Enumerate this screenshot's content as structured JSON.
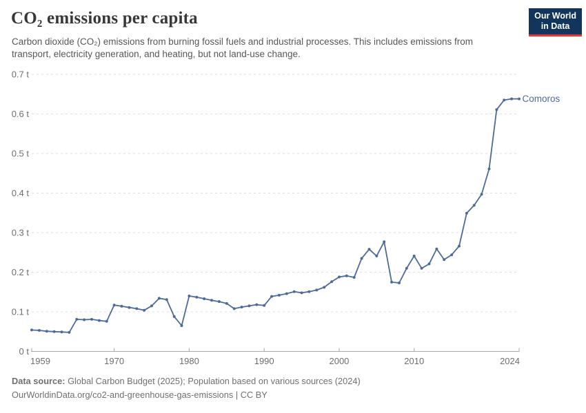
{
  "header": {
    "title": "CO₂ emissions per capita",
    "subtitle": "Carbon dioxide (CO₂) emissions from burning fossil fuels and industrial processes. This includes emissions from transport, electricity generation, and heating, but not land-use change.",
    "logo": {
      "line1": "Our World",
      "line2": "in Data",
      "bg_color": "#12355c",
      "accent_color": "#e03b32"
    }
  },
  "chart_data": {
    "type": "line",
    "title": "CO₂ emissions per capita",
    "entity": "Comoros",
    "unit": "t",
    "line_color": "#4C6A9C",
    "grid": "horizontal-dashed",
    "legend_position": "end-of-line-label",
    "ylim": [
      0,
      0.7
    ],
    "ytick_values": [
      0,
      0.1,
      0.2,
      0.3,
      0.4,
      0.5,
      0.6,
      0.7
    ],
    "ytick_labels": [
      "0 t",
      "0.1 t",
      "0.2 t",
      "0.3 t",
      "0.4 t",
      "0.5 t",
      "0.6 t",
      "0.7 t"
    ],
    "xticks": [
      1959,
      1970,
      1980,
      1990,
      2000,
      2010,
      2024
    ],
    "xtick_labels": [
      "1959",
      "1970",
      "1980",
      "1990",
      "2000",
      "2010",
      "2024"
    ],
    "x": [
      1959,
      1960,
      1961,
      1962,
      1963,
      1964,
      1965,
      1966,
      1967,
      1968,
      1969,
      1970,
      1971,
      1972,
      1973,
      1974,
      1975,
      1976,
      1977,
      1978,
      1979,
      1980,
      1981,
      1982,
      1983,
      1984,
      1985,
      1986,
      1987,
      1988,
      1989,
      1990,
      1991,
      1992,
      1993,
      1994,
      1995,
      1996,
      1997,
      1998,
      1999,
      2000,
      2001,
      2002,
      2003,
      2004,
      2005,
      2006,
      2007,
      2008,
      2009,
      2010,
      2011,
      2012,
      2013,
      2014,
      2015,
      2016,
      2017,
      2018,
      2019,
      2020,
      2021,
      2022,
      2023,
      2024
    ],
    "values": [
      0.054,
      0.053,
      0.051,
      0.05,
      0.049,
      0.048,
      0.081,
      0.08,
      0.081,
      0.078,
      0.076,
      0.117,
      0.114,
      0.111,
      0.108,
      0.104,
      0.115,
      0.134,
      0.131,
      0.088,
      0.065,
      0.14,
      0.137,
      0.133,
      0.129,
      0.126,
      0.121,
      0.108,
      0.112,
      0.115,
      0.118,
      0.116,
      0.139,
      0.142,
      0.146,
      0.151,
      0.148,
      0.151,
      0.155,
      0.162,
      0.176,
      0.188,
      0.191,
      0.187,
      0.235,
      0.258,
      0.241,
      0.277,
      0.175,
      0.173,
      0.21,
      0.241,
      0.21,
      0.221,
      0.259,
      0.232,
      0.244,
      0.266,
      0.349,
      0.369,
      0.397,
      0.461,
      0.611,
      0.635,
      0.638,
      0.638
    ]
  },
  "footer": {
    "source_label": "Data source:",
    "source_text": " Global Carbon Budget (2025); Population based on various sources (2024)",
    "link_text": "OurWorldinData.org/co2-and-greenhouse-gas-emissions | CC BY"
  }
}
